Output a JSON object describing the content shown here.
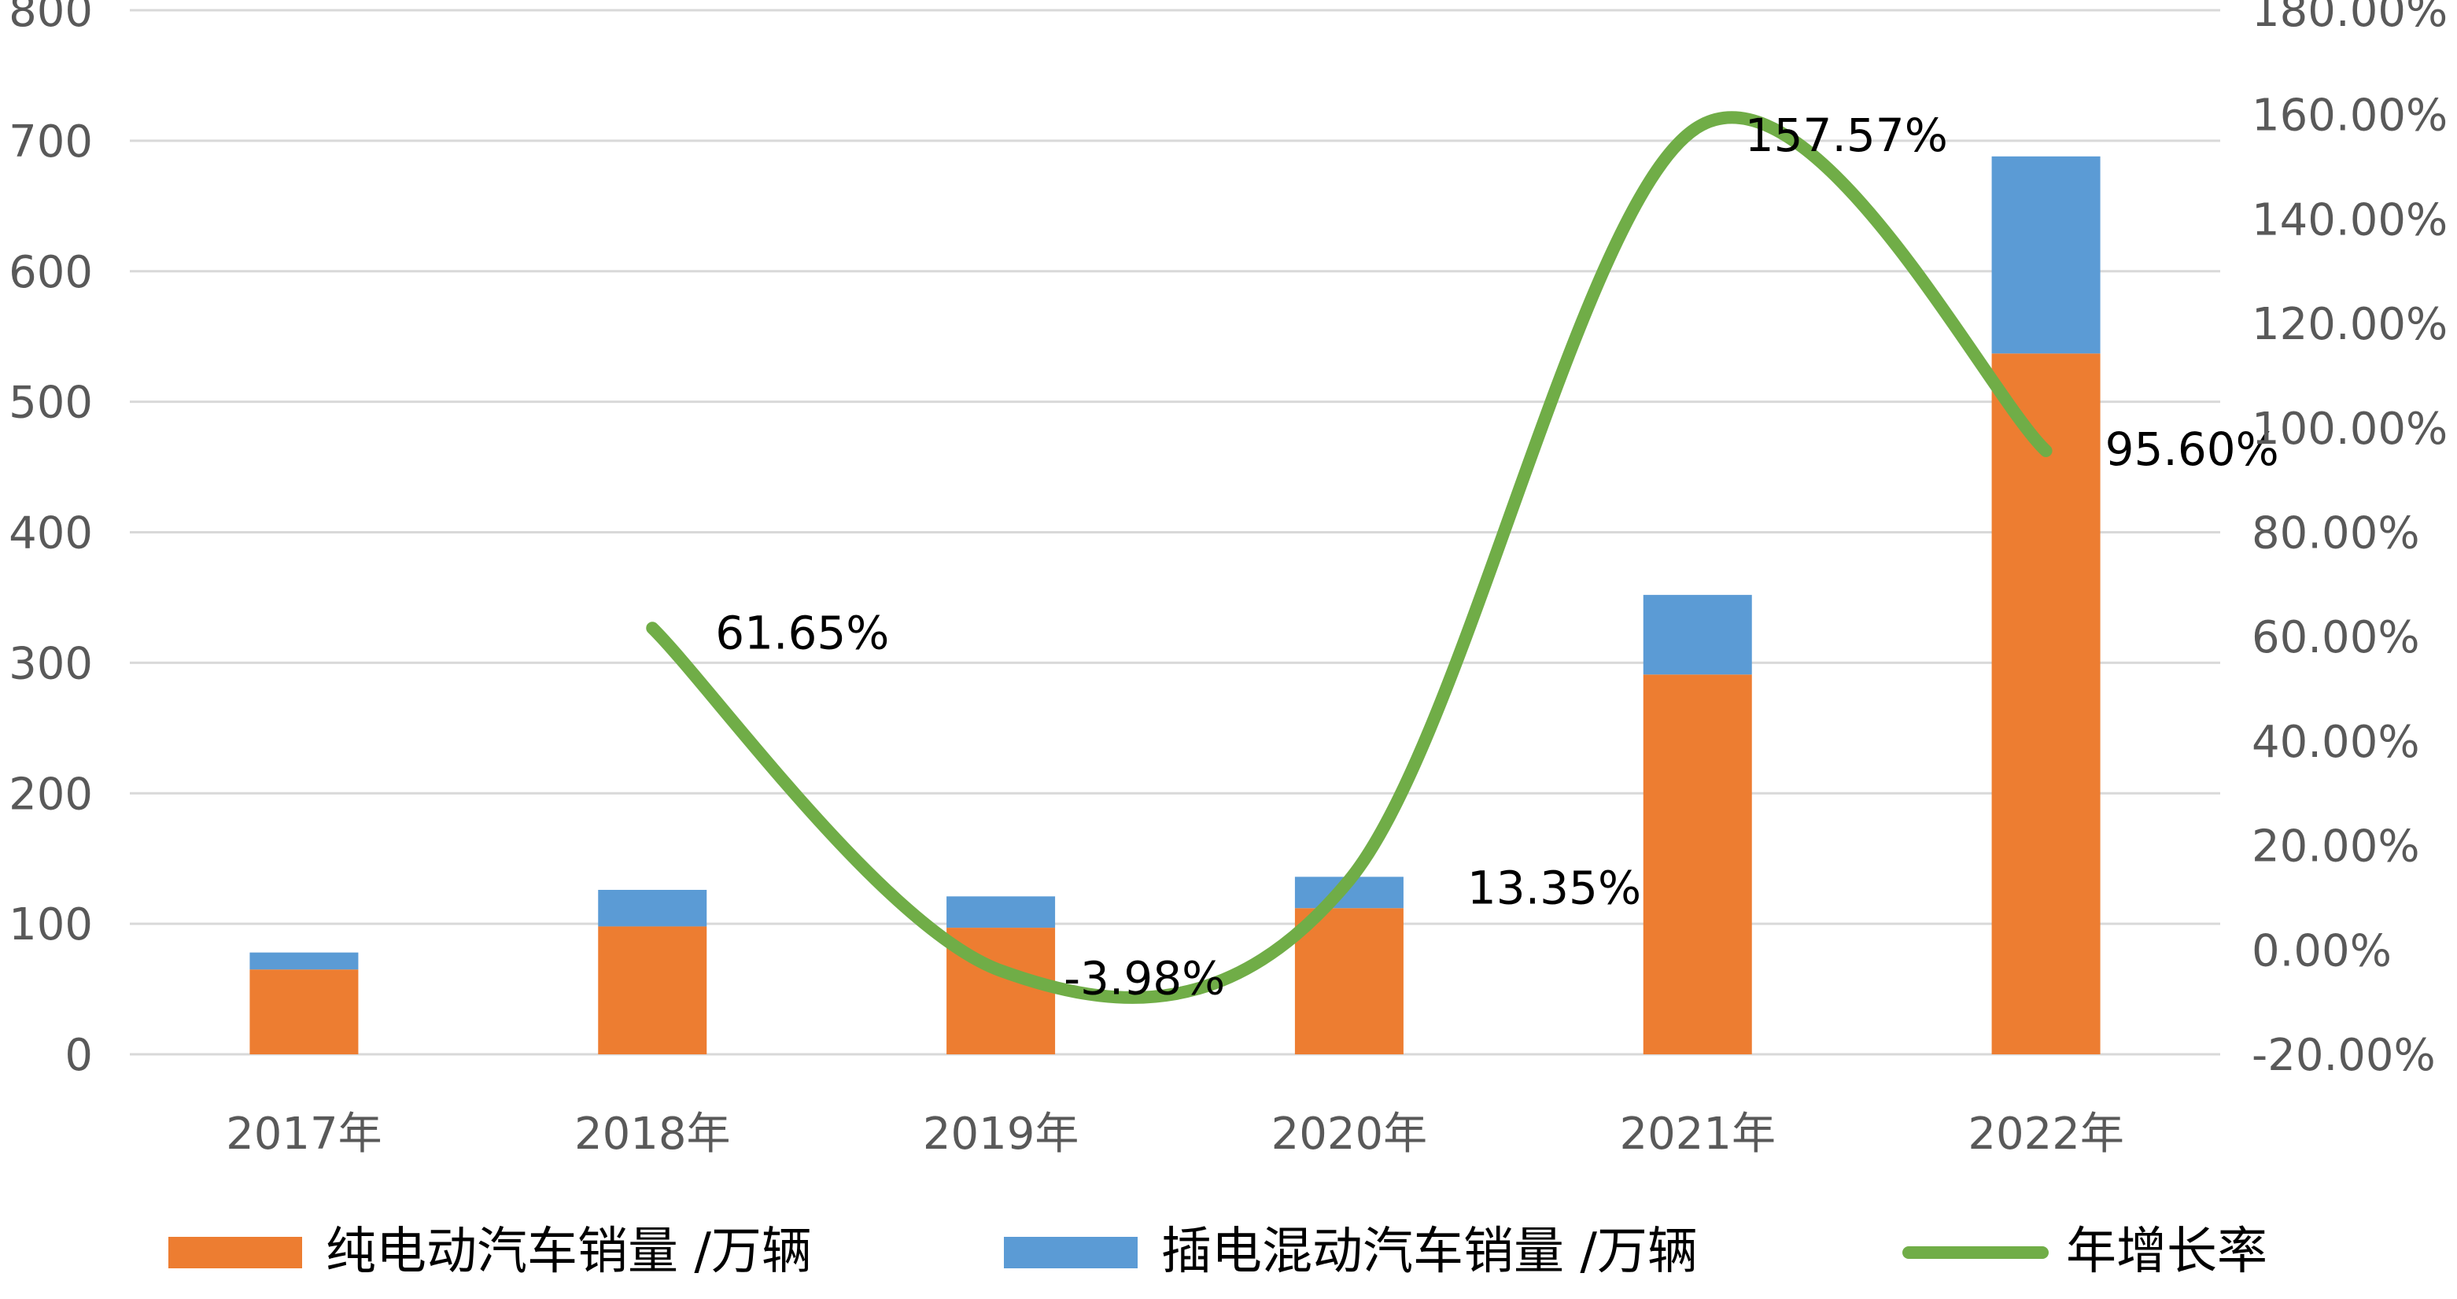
{
  "chart_data": {
    "type": "bar",
    "stacked": true,
    "categories": [
      "2017年",
      "2018年",
      "2019年",
      "2020年",
      "2021年",
      "2022年"
    ],
    "series": [
      {
        "name": "纯电动汽车销量 /万辆",
        "type": "bar",
        "axis": "left",
        "color": "#ed7d31",
        "values": [
          65,
          98,
          97,
          112,
          291,
          537
        ]
      },
      {
        "name": "插电混动汽车销量 /万辆",
        "type": "bar",
        "axis": "left",
        "color": "#5b9bd5",
        "values": [
          13,
          28,
          24,
          24,
          61,
          151
        ]
      },
      {
        "name": "年增长率",
        "type": "line",
        "axis": "right",
        "color": "#70ad47",
        "values": [
          null,
          61.65,
          -3.98,
          13.35,
          157.57,
          95.6
        ],
        "labels": [
          "",
          "61.65%",
          "-3.98%",
          "13.35%",
          "157.57%",
          "95.60%"
        ]
      }
    ],
    "yleft": {
      "min": 0,
      "max": 800,
      "step": 100,
      "ticks": [
        "0",
        "100",
        "200",
        "300",
        "400",
        "500",
        "600",
        "700",
        "800"
      ]
    },
    "yright": {
      "min": -20,
      "max": 180,
      "step": 20,
      "ticks": [
        "-20.00%",
        "0.00%",
        "20.00%",
        "40.00%",
        "60.00%",
        "80.00%",
        "100.00%",
        "120.00%",
        "140.00%",
        "160.00%",
        "180.00%"
      ]
    },
    "grid": true,
    "legend": "bottom"
  }
}
